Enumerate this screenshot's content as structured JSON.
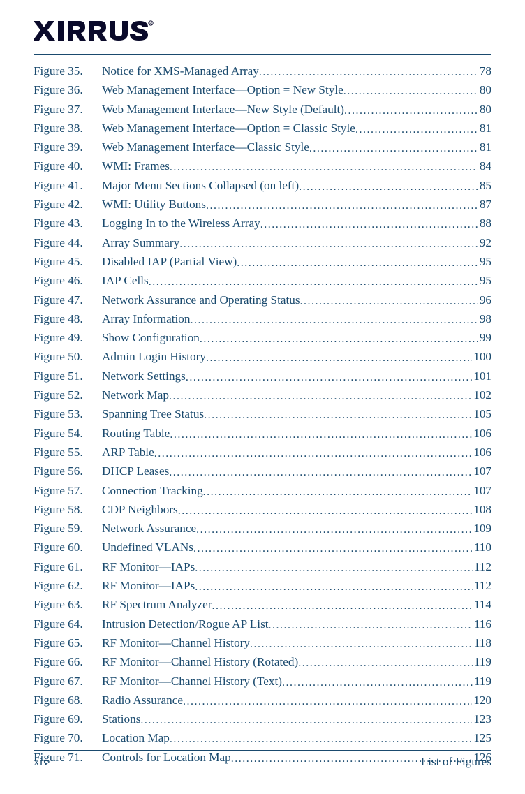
{
  "brand": {
    "name": "XIRRUS",
    "color": "#0a0a2a"
  },
  "colors": {
    "text": "#1a4a6e",
    "rule": "#1a4a6e",
    "background": "#ffffff"
  },
  "typography": {
    "body_fontsize_pt": 13,
    "font_family": "Palatino Linotype"
  },
  "entries": [
    {
      "n": 35,
      "title": "Notice for XMS-Managed Array",
      "page": 78
    },
    {
      "n": 36,
      "title": "Web Management Interface—Option = New Style",
      "page": 80
    },
    {
      "n": 37,
      "title": "Web Management Interface—New Style (Default)",
      "page": 80
    },
    {
      "n": 38,
      "title": "Web Management Interface—Option = Classic Style",
      "page": 81
    },
    {
      "n": 39,
      "title": "Web Management Interface—Classic Style",
      "page": 81
    },
    {
      "n": 40,
      "title": "WMI: Frames",
      "page": 84
    },
    {
      "n": 41,
      "title": "Major Menu Sections Collapsed (on left)",
      "page": 85
    },
    {
      "n": 42,
      "title": "WMI: Utility Buttons",
      "page": 87
    },
    {
      "n": 43,
      "title": "Logging In to the Wireless Array",
      "page": 88
    },
    {
      "n": 44,
      "title": "Array Summary",
      "page": 92
    },
    {
      "n": 45,
      "title": "Disabled IAP (Partial View)",
      "page": 95
    },
    {
      "n": 46,
      "title": "IAP Cells",
      "page": 95
    },
    {
      "n": 47,
      "title": "Network Assurance and Operating Status",
      "page": 96
    },
    {
      "n": 48,
      "title": "Array Information",
      "page": 98
    },
    {
      "n": 49,
      "title": "Show Configuration",
      "page": 99
    },
    {
      "n": 50,
      "title": "Admin Login History",
      "page": 100
    },
    {
      "n": 51,
      "title": "Network Settings",
      "page": 101
    },
    {
      "n": 52,
      "title": "Network Map",
      "page": 102
    },
    {
      "n": 53,
      "title": "Spanning Tree Status",
      "page": 105
    },
    {
      "n": 54,
      "title": "Routing Table",
      "page": 106
    },
    {
      "n": 55,
      "title": "ARP Table",
      "page": 106
    },
    {
      "n": 56,
      "title": "DHCP Leases",
      "page": 107
    },
    {
      "n": 57,
      "title": "Connection Tracking",
      "page": 107
    },
    {
      "n": 58,
      "title": "CDP Neighbors",
      "page": 108
    },
    {
      "n": 59,
      "title": "Network Assurance",
      "page": 109
    },
    {
      "n": 60,
      "title": "Undefined VLANs",
      "page": 110
    },
    {
      "n": 61,
      "title": "RF Monitor—IAPs",
      "page": 112
    },
    {
      "n": 62,
      "title": "RF Monitor—IAPs",
      "page": 112
    },
    {
      "n": 63,
      "title": "RF Spectrum Analyzer",
      "page": 114
    },
    {
      "n": 64,
      "title": "Intrusion Detection/Rogue AP List",
      "page": 116
    },
    {
      "n": 65,
      "title": "RF Monitor—Channel History",
      "page": 118
    },
    {
      "n": 66,
      "title": "RF Monitor—Channel History (Rotated)",
      "page": 119
    },
    {
      "n": 67,
      "title": "RF Monitor—Channel History (Text)",
      "page": 119
    },
    {
      "n": 68,
      "title": "Radio Assurance",
      "page": 120
    },
    {
      "n": 69,
      "title": "Stations",
      "page": 123
    },
    {
      "n": 70,
      "title": "Location Map",
      "page": 125
    },
    {
      "n": 71,
      "title": "Controls for Location Map",
      "page": 126
    }
  ],
  "figure_prefix": "Figure",
  "footer": {
    "page_label": "xiv",
    "section_label": "List of Figures"
  }
}
